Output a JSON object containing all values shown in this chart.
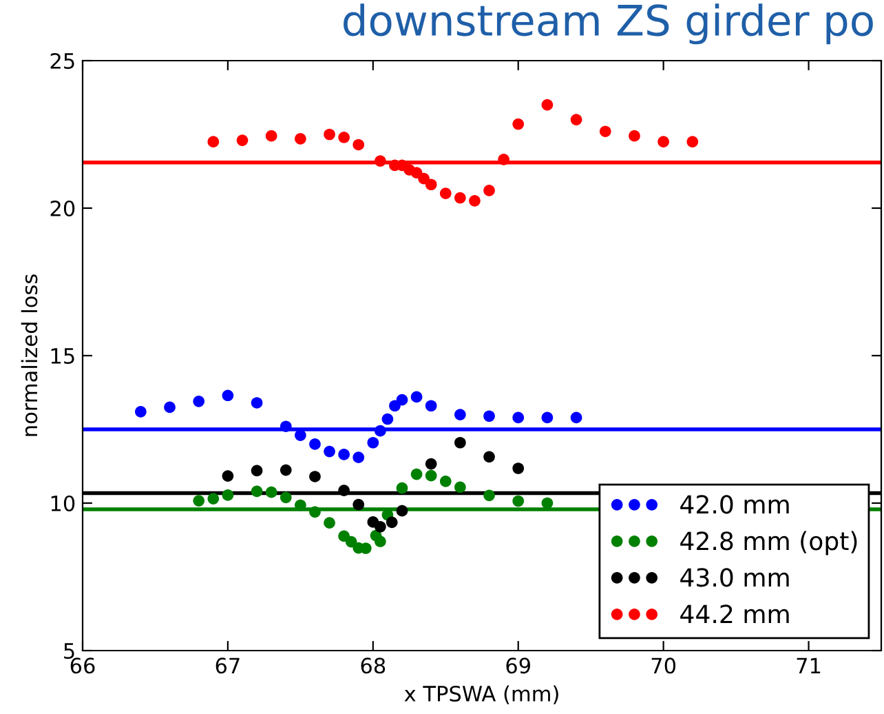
{
  "chart_data": {
    "type": "scatter",
    "title": "downstream ZS girder po",
    "xlabel": "x TPSWA (mm)",
    "ylabel": "normalized loss",
    "xlim": [
      66,
      71.5
    ],
    "xticks": [
      66,
      67,
      68,
      69,
      70,
      71
    ],
    "ylim": [
      5,
      25
    ],
    "yticks": [
      5,
      10,
      15,
      20,
      25
    ],
    "grid": false,
    "legend": "bottom right",
    "marker": "circle",
    "series": [
      {
        "name": "42.0 mm",
        "color": "#0000ff",
        "x": [
          66.4,
          66.6,
          66.8,
          67.0,
          67.2,
          67.4,
          67.5,
          67.6,
          67.7,
          67.8,
          67.9,
          68.0,
          68.05,
          68.1,
          68.15,
          68.2,
          68.3,
          68.4,
          68.6,
          68.8,
          69.0,
          69.2,
          69.4
        ],
        "values": [
          13.1,
          13.25,
          13.45,
          13.65,
          13.4,
          12.6,
          12.3,
          12.0,
          11.75,
          11.65,
          11.55,
          12.05,
          12.45,
          12.85,
          13.3,
          13.5,
          13.6,
          13.3,
          13.0,
          12.95,
          12.9,
          12.9,
          12.9
        ]
      },
      {
        "name": "42.8 mm (opt)",
        "color": "#008000",
        "x": [
          66.8,
          66.9,
          67.0,
          67.2,
          67.3,
          67.4,
          67.5,
          67.6,
          67.7,
          67.8,
          67.85,
          67.9,
          67.95,
          68.0,
          68.02,
          68.05,
          68.1,
          68.2,
          68.3,
          68.4,
          68.5,
          68.6,
          68.8,
          69.0,
          69.2
        ],
        "values": [
          10.08,
          10.15,
          10.27,
          10.4,
          10.37,
          10.19,
          9.93,
          9.7,
          9.33,
          8.88,
          8.69,
          8.48,
          8.47,
          null,
          8.9,
          8.7,
          9.6,
          10.51,
          10.98,
          10.93,
          10.74,
          10.54,
          10.26,
          10.07,
          10.0
        ]
      },
      {
        "name": "43.0 mm",
        "color": "#000000",
        "x": [
          67.0,
          67.2,
          67.4,
          67.6,
          67.8,
          67.9,
          68.0,
          68.05,
          68.1,
          68.13,
          68.2,
          68.4,
          68.6,
          68.8,
          69.0
        ],
        "values": [
          10.92,
          11.1,
          11.12,
          10.9,
          10.43,
          9.95,
          9.36,
          9.2,
          null,
          9.35,
          9.74,
          11.33,
          12.05,
          11.57,
          11.18
        ]
      },
      {
        "name": "44.2 mm",
        "color": "#ff0000",
        "x": [
          66.9,
          67.1,
          67.3,
          67.5,
          67.7,
          67.8,
          67.9,
          68.05,
          68.15,
          68.2,
          68.25,
          68.3,
          68.35,
          68.4,
          68.5,
          68.6,
          68.7,
          68.8,
          68.9,
          69.0,
          69.2,
          69.4,
          69.6,
          69.8,
          70.0,
          70.2
        ],
        "values": [
          22.25,
          22.3,
          22.45,
          22.35,
          22.5,
          22.4,
          22.15,
          21.6,
          21.45,
          21.45,
          21.3,
          21.2,
          21.0,
          20.8,
          20.5,
          20.35,
          20.25,
          20.6,
          21.65,
          22.85,
          23.5,
          23.0,
          22.6,
          22.45,
          22.25,
          22.25
        ]
      }
    ],
    "ref_lines": [
      {
        "axis": "y",
        "value": 12.5,
        "color": "#0000ff",
        "line_style": "solid"
      },
      {
        "axis": "y",
        "value": 9.79,
        "color": "#008000",
        "line_style": "solid"
      },
      {
        "axis": "y",
        "value": 10.34,
        "color": "#000000",
        "line_style": "solid"
      },
      {
        "axis": "y",
        "value": 21.55,
        "color": "#ff0000",
        "line_style": "solid"
      }
    ]
  }
}
